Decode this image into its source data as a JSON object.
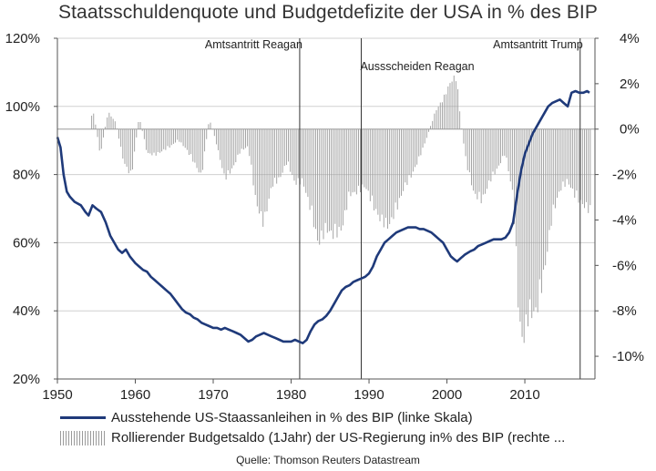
{
  "chart_data": {
    "type": "line+bar",
    "title": "Staatsschuldenquote und Budgetdefizite  der USA in % des BIP",
    "xlim": [
      1950,
      2019
    ],
    "x_ticks": [
      1950,
      1960,
      1970,
      1980,
      1990,
      2000,
      2010
    ],
    "y_left": {
      "lim": [
        20,
        120
      ],
      "ticks": [
        20,
        40,
        60,
        80,
        100,
        120
      ],
      "tick_labels": [
        "20%",
        "40%",
        "60%",
        "80%",
        "100%",
        "120%"
      ]
    },
    "y_right": {
      "lim": [
        -11,
        4
      ],
      "ticks": [
        -10,
        -8,
        -6,
        -4,
        -2,
        0,
        2,
        4
      ],
      "tick_labels": [
        "-10%",
        "-8%",
        "-6%",
        "-4%",
        "-2%",
        "0%",
        "2%",
        "4%"
      ]
    },
    "annotations": [
      {
        "year": 1981.1,
        "text": "Amtsantritt Reagan"
      },
      {
        "year": 1989.0,
        "text": "Aussscheiden Reagan"
      },
      {
        "year": 2017.1,
        "text": "Amtsantritt Trump"
      }
    ],
    "legend": [
      "Ausstehende US-Staassanleihen in % des BIP (linke Skala)",
      "Rollierender Budgetsaldo (1Jahr) der US-Regierung in% des BIP (rechte ..."
    ],
    "series": [
      {
        "name": "Ausstehende US-Staassanleihen in % des BIP (linke Skala)",
        "axis": "left",
        "points": [
          [
            1950,
            91
          ],
          [
            1950.4,
            88
          ],
          [
            1950.8,
            80
          ],
          [
            1951.2,
            75
          ],
          [
            1951.6,
            73.5
          ],
          [
            1952.2,
            72
          ],
          [
            1953,
            71
          ],
          [
            1953.6,
            69
          ],
          [
            1954,
            68
          ],
          [
            1954.5,
            71
          ],
          [
            1955,
            70
          ],
          [
            1955.6,
            69
          ],
          [
            1956.2,
            66
          ],
          [
            1956.8,
            62
          ],
          [
            1957.3,
            60
          ],
          [
            1957.8,
            58
          ],
          [
            1958.3,
            57
          ],
          [
            1958.8,
            58
          ],
          [
            1959.3,
            56
          ],
          [
            1960,
            54
          ],
          [
            1960.5,
            53
          ],
          [
            1961,
            52
          ],
          [
            1961.5,
            51.5
          ],
          [
            1962,
            50
          ],
          [
            1962.5,
            49
          ],
          [
            1963,
            48
          ],
          [
            1963.5,
            47
          ],
          [
            1964,
            46
          ],
          [
            1964.5,
            45
          ],
          [
            1965,
            43.5
          ],
          [
            1965.5,
            42
          ],
          [
            1966,
            40.5
          ],
          [
            1966.5,
            39.5
          ],
          [
            1967,
            39
          ],
          [
            1967.5,
            38
          ],
          [
            1968,
            37.5
          ],
          [
            1968.5,
            36.5
          ],
          [
            1969,
            36
          ],
          [
            1969.5,
            35.5
          ],
          [
            1970,
            35
          ],
          [
            1970.5,
            35
          ],
          [
            1971,
            34.5
          ],
          [
            1971.5,
            35
          ],
          [
            1972,
            34.5
          ],
          [
            1972.5,
            34
          ],
          [
            1973,
            33.5
          ],
          [
            1973.5,
            33
          ],
          [
            1974,
            32
          ],
          [
            1974.5,
            31
          ],
          [
            1975,
            31.5
          ],
          [
            1975.5,
            32.5
          ],
          [
            1976,
            33
          ],
          [
            1976.5,
            33.5
          ],
          [
            1977,
            33
          ],
          [
            1977.5,
            32.5
          ],
          [
            1978,
            32
          ],
          [
            1978.5,
            31.5
          ],
          [
            1979,
            31
          ],
          [
            1979.5,
            31
          ],
          [
            1980,
            31
          ],
          [
            1980.5,
            31.5
          ],
          [
            1981,
            31
          ],
          [
            1981.5,
            30.5
          ],
          [
            1982,
            31.5
          ],
          [
            1982.5,
            34
          ],
          [
            1983,
            36
          ],
          [
            1983.5,
            37
          ],
          [
            1984,
            37.5
          ],
          [
            1984.5,
            38.5
          ],
          [
            1985,
            40
          ],
          [
            1985.5,
            42
          ],
          [
            1986,
            44
          ],
          [
            1986.5,
            46
          ],
          [
            1987,
            47
          ],
          [
            1987.5,
            47.5
          ],
          [
            1988,
            48.5
          ],
          [
            1988.5,
            49
          ],
          [
            1989,
            49.5
          ],
          [
            1989.5,
            50
          ],
          [
            1990,
            51
          ],
          [
            1990.5,
            53
          ],
          [
            1991,
            56
          ],
          [
            1991.5,
            58
          ],
          [
            1992,
            60
          ],
          [
            1992.5,
            61
          ],
          [
            1993,
            62
          ],
          [
            1993.5,
            63
          ],
          [
            1994,
            63.5
          ],
          [
            1994.5,
            64
          ],
          [
            1995,
            64.5
          ],
          [
            1995.5,
            64.5
          ],
          [
            1996,
            64.5
          ],
          [
            1996.5,
            64
          ],
          [
            1997,
            64
          ],
          [
            1997.5,
            63.5
          ],
          [
            1998,
            63
          ],
          [
            1998.5,
            62
          ],
          [
            1999,
            61
          ],
          [
            1999.5,
            60
          ],
          [
            2000,
            58
          ],
          [
            2000.5,
            56
          ],
          [
            2001,
            55
          ],
          [
            2001.3,
            54.5
          ],
          [
            2001.8,
            55.5
          ],
          [
            2002.3,
            56.5
          ],
          [
            2003,
            57.5
          ],
          [
            2003.5,
            58
          ],
          [
            2004,
            59
          ],
          [
            2004.5,
            59.5
          ],
          [
            2005,
            60
          ],
          [
            2005.5,
            60.5
          ],
          [
            2006,
            61
          ],
          [
            2006.5,
            61
          ],
          [
            2007,
            61
          ],
          [
            2007.5,
            61.5
          ],
          [
            2008,
            63
          ],
          [
            2008.5,
            66
          ],
          [
            2009,
            74
          ],
          [
            2009.5,
            81
          ],
          [
            2010,
            86
          ],
          [
            2010.5,
            89
          ],
          [
            2011,
            92
          ],
          [
            2011.5,
            94
          ],
          [
            2012,
            96
          ],
          [
            2012.5,
            98
          ],
          [
            2013,
            100
          ],
          [
            2013.5,
            101
          ],
          [
            2014,
            101.5
          ],
          [
            2014.5,
            102
          ],
          [
            2015,
            101
          ],
          [
            2015.5,
            100
          ],
          [
            2016,
            104
          ],
          [
            2016.5,
            104.5
          ],
          [
            2017,
            104
          ],
          [
            2017.5,
            104
          ],
          [
            2018,
            104.5
          ],
          [
            2018.3,
            104
          ]
        ]
      },
      {
        "name": "Rollierender Budgetsaldo (1Jahr) der US-Regierung in% des BIP (rechte ...",
        "axis": "right",
        "type": "bar",
        "points": [
          [
            1950,
            0
          ],
          [
            1951,
            0
          ],
          [
            1952,
            0
          ],
          [
            1953,
            0
          ],
          [
            1954,
            0
          ],
          [
            1954.6,
            0.9
          ],
          [
            1955.5,
            -1.2
          ],
          [
            1956.5,
            0.8
          ],
          [
            1957.5,
            0.3
          ],
          [
            1958.5,
            -1.5
          ],
          [
            1959.5,
            -2.2
          ],
          [
            1960.5,
            0.6
          ],
          [
            1961.5,
            -1.1
          ],
          [
            1962.5,
            -1.2
          ],
          [
            1963.5,
            -1.0
          ],
          [
            1964.5,
            -0.8
          ],
          [
            1965.5,
            -0.5
          ],
          [
            1966.5,
            -0.9
          ],
          [
            1967.5,
            -1.5
          ],
          [
            1968.5,
            -2.2
          ],
          [
            1969.5,
            0.5
          ],
          [
            1970.5,
            -0.8
          ],
          [
            1971.5,
            -2.3
          ],
          [
            1972.5,
            -1.8
          ],
          [
            1973.5,
            -1.0
          ],
          [
            1974.5,
            -0.8
          ],
          [
            1975.5,
            -3.4
          ],
          [
            1976.5,
            -4.4
          ],
          [
            1977.5,
            -2.6
          ],
          [
            1978.5,
            -2.3
          ],
          [
            1979.5,
            -1.5
          ],
          [
            1980.5,
            -2.5
          ],
          [
            1981.5,
            -2.4
          ],
          [
            1982.5,
            -3.7
          ],
          [
            1983.5,
            -5.3
          ],
          [
            1984.5,
            -4.6
          ],
          [
            1985.5,
            -4.9
          ],
          [
            1986.5,
            -4.6
          ],
          [
            1987.5,
            -3.0
          ],
          [
            1988.5,
            -2.9
          ],
          [
            1989.5,
            -2.6
          ],
          [
            1990.5,
            -3.5
          ],
          [
            1991.5,
            -4.2
          ],
          [
            1992.5,
            -4.5
          ],
          [
            1993.5,
            -3.7
          ],
          [
            1994.5,
            -2.7
          ],
          [
            1995.5,
            -2.1
          ],
          [
            1996.5,
            -1.3
          ],
          [
            1997.5,
            -0.3
          ],
          [
            1998.5,
            0.8
          ],
          [
            1999.5,
            1.4
          ],
          [
            2000.5,
            2.2
          ],
          [
            2001.2,
            2.5
          ],
          [
            2001.8,
            0.3
          ],
          [
            2002.5,
            -1.6
          ],
          [
            2003.5,
            -3.0
          ],
          [
            2004.5,
            -3.3
          ],
          [
            2005.5,
            -2.4
          ],
          [
            2006.5,
            -1.8
          ],
          [
            2007.5,
            -1.1
          ],
          [
            2008.5,
            -3.1
          ],
          [
            2009.3,
            -9.0
          ],
          [
            2009.8,
            -9.8
          ],
          [
            2010.5,
            -8.5
          ],
          [
            2011.5,
            -8.4
          ],
          [
            2012.5,
            -6.6
          ],
          [
            2013.5,
            -4.0
          ],
          [
            2014.5,
            -2.8
          ],
          [
            2015.5,
            -2.4
          ],
          [
            2016.5,
            -3.1
          ],
          [
            2017.5,
            -3.5
          ],
          [
            2018.5,
            -3.8
          ]
        ]
      }
    ],
    "source": "Quelle: Thomson Reuters Datastream"
  }
}
